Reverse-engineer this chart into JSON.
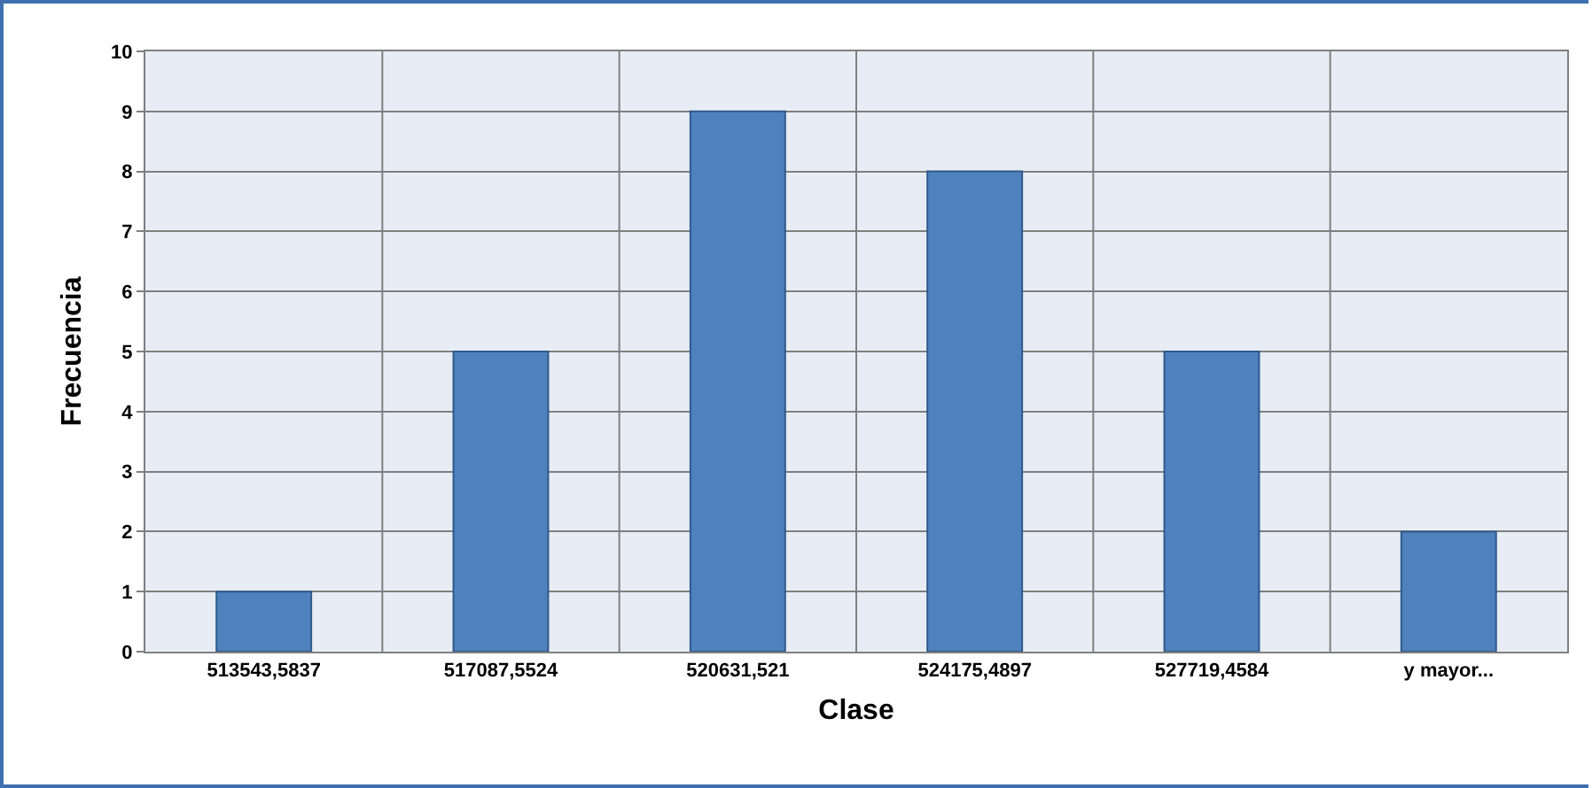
{
  "chart_data": {
    "type": "bar",
    "xlabel": "Clase",
    "ylabel": "Frecuencia",
    "categories": [
      "513543,5837",
      "517087,5524",
      "520631,521",
      "524175,4897",
      "527719,4584",
      "y mayor..."
    ],
    "values": [
      1,
      5,
      9,
      8,
      5,
      2
    ],
    "color": "#4f81bd",
    "ylim": [
      0,
      10
    ],
    "yticks": [
      0,
      1,
      2,
      3,
      4,
      5,
      6,
      7,
      8,
      9,
      10
    ],
    "grid": true
  }
}
